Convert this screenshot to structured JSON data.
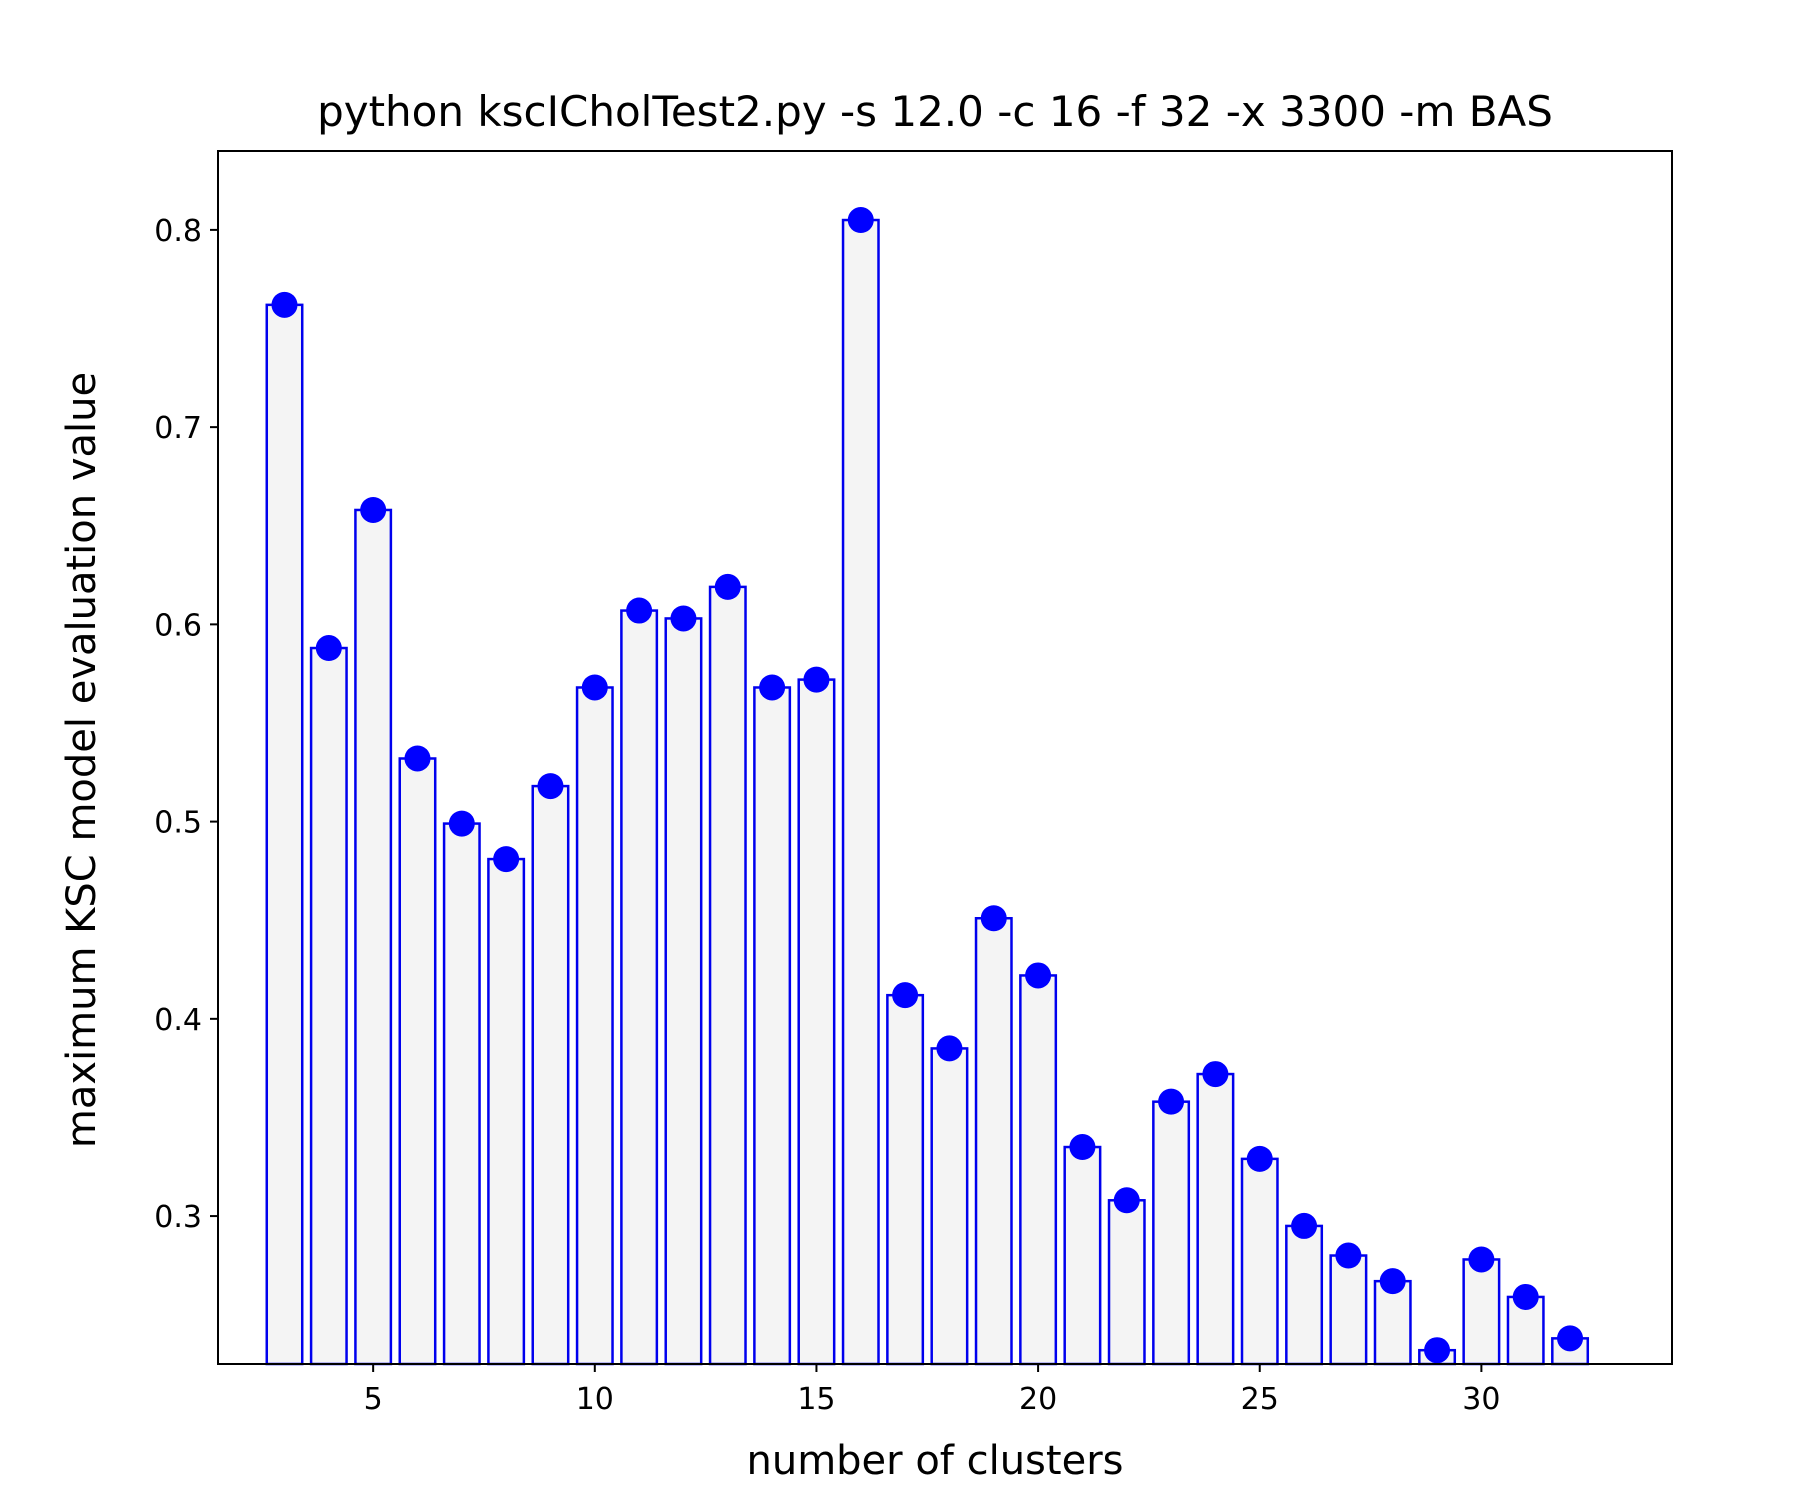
{
  "chart_data": {
    "type": "bar",
    "title": "python kscICholTest2.py -s 12.0 -c 16 -f 32 -x 3300 -m BAS",
    "xlabel": "number of clusters",
    "ylabel": "maximum KSC model evaluation value",
    "x": [
      3,
      4,
      5,
      6,
      7,
      8,
      9,
      10,
      11,
      12,
      13,
      14,
      15,
      16,
      17,
      18,
      19,
      20,
      21,
      22,
      23,
      24,
      25,
      26,
      27,
      28,
      29,
      30,
      31,
      32
    ],
    "values": [
      0.762,
      0.588,
      0.658,
      0.532,
      0.499,
      0.481,
      0.518,
      0.568,
      0.607,
      0.603,
      0.619,
      0.568,
      0.572,
      0.805,
      0.412,
      0.385,
      0.451,
      0.422,
      0.335,
      0.308,
      0.358,
      0.372,
      0.329,
      0.295,
      0.28,
      0.267,
      0.232,
      0.278,
      0.259,
      0.238
    ],
    "xlim": [
      1.5,
      34.3
    ],
    "ylim": [
      0.225,
      0.84
    ],
    "xticks": [
      5,
      10,
      15,
      20,
      25,
      30
    ],
    "yticks": [
      0.3,
      0.4,
      0.5,
      0.6,
      0.7,
      0.8
    ],
    "grid": false,
    "colors": {
      "bar_edge": "#0000ee",
      "bar_fill": "#f4f4f4",
      "marker": "#0000ff"
    }
  }
}
